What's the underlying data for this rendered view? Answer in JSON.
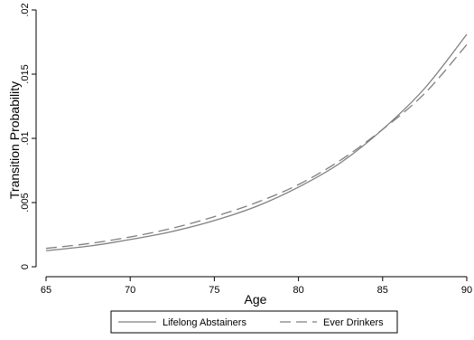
{
  "chart_data": {
    "type": "line",
    "title": "",
    "xlabel": "Age",
    "ylabel": "Transition Probability",
    "xlim": [
      65,
      90
    ],
    "ylim": [
      0,
      0.02
    ],
    "xticks": [
      65,
      70,
      75,
      80,
      85,
      90
    ],
    "xtick_labels": [
      "65",
      "70",
      "75",
      "80",
      "85",
      "90"
    ],
    "yticks": [
      0,
      0.005,
      0.01,
      0.015,
      0.02
    ],
    "ytick_labels": [
      "0",
      ".005",
      ".01",
      ".015",
      ".02"
    ],
    "grid": false,
    "legend_position": "bottom",
    "x": [
      65,
      67.5,
      70,
      72.5,
      75,
      77.5,
      80,
      82.5,
      85,
      87.5,
      90
    ],
    "series": [
      {
        "name": "Lifelong Abstainers",
        "color": "#7f7f7f",
        "dash": "solid",
        "values": [
          0.00125,
          0.0016,
          0.00212,
          0.00275,
          0.0036,
          0.0047,
          0.0062,
          0.0081,
          0.0107,
          0.0139,
          0.0181
        ]
      },
      {
        "name": "Ever Drinkers",
        "color": "#7f7f7f",
        "dash": "dashed",
        "values": [
          0.00143,
          0.0018,
          0.00232,
          0.003,
          0.0039,
          0.005,
          0.0064,
          0.0083,
          0.0107,
          0.0135,
          0.0173
        ]
      }
    ]
  }
}
